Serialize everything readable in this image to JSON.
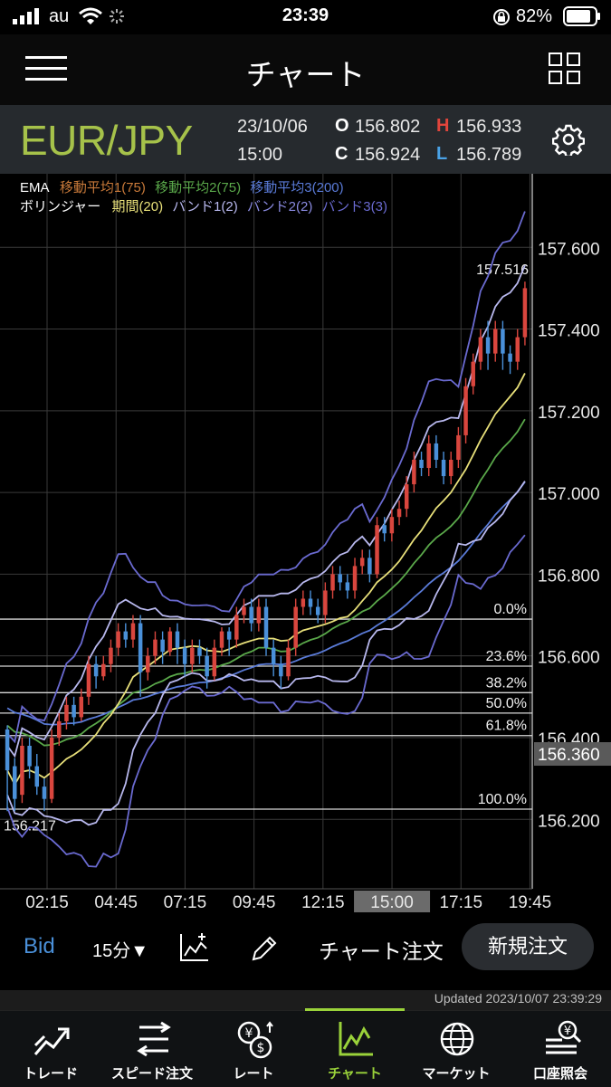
{
  "status_bar": {
    "carrier": "au",
    "time": "23:39",
    "battery": "82%"
  },
  "nav": {
    "title": "チャート",
    "menu_icon": "hamburger-menu-icon",
    "grid_icon": "grid-layout-icon"
  },
  "quote": {
    "pair": "EUR/JPY",
    "date": "23/10/06",
    "time": "15:00",
    "open_label": "O",
    "open": "156.802",
    "high_label": "H",
    "high": "156.933",
    "close_label": "C",
    "close": "156.924",
    "low_label": "L",
    "low": "156.789"
  },
  "legend": {
    "ema_label": "EMA",
    "ma1": "移動平均1(75)",
    "ma2": "移動平均2(75)",
    "ma3": "移動平均3(200)",
    "bb_label": "ボリンジャー",
    "period": "期間(20)",
    "band1": "バンド1(2)",
    "band2": "バンド2(2)",
    "band3": "バンド3(3)"
  },
  "chart_data": {
    "type": "candlestick",
    "y_ticks": [
      "157.600",
      "157.400",
      "157.200",
      "157.000",
      "156.800",
      "156.600",
      "156.400",
      "156.200"
    ],
    "x_ticks": [
      "02:15",
      "04:45",
      "07:15",
      "09:45",
      "12:15",
      "15:00",
      "17:15",
      "19:45"
    ],
    "selected_x": "15:00",
    "current_price": "156.360",
    "high_marker": "157.516",
    "low_marker": "156.217",
    "fib_levels": [
      {
        "label": "0.0%",
        "price": 156.69
      },
      {
        "label": "23.6%",
        "price": 156.575
      },
      {
        "label": "38.2%",
        "price": 156.51
      },
      {
        "label": "50.0%",
        "price": 156.46
      },
      {
        "label": "61.8%",
        "price": 156.405
      },
      {
        "label": "100.0%",
        "price": 156.225
      }
    ],
    "ylim": [
      156.03,
      157.78
    ],
    "candles": [
      [
        156.42,
        156.32,
        156.43,
        156.22
      ],
      [
        156.33,
        156.25,
        156.35,
        156.22
      ],
      [
        156.26,
        156.38,
        156.4,
        156.24
      ],
      [
        156.38,
        156.33,
        156.4,
        156.3
      ],
      [
        156.33,
        156.28,
        156.36,
        156.26
      ],
      [
        156.28,
        156.25,
        156.3,
        156.22
      ],
      [
        156.25,
        156.4,
        156.42,
        156.24
      ],
      [
        156.4,
        156.44,
        156.46,
        156.38
      ],
      [
        156.44,
        156.48,
        156.5,
        156.42
      ],
      [
        156.48,
        156.45,
        156.5,
        156.43
      ],
      [
        156.45,
        156.5,
        156.52,
        156.44
      ],
      [
        156.5,
        156.58,
        156.6,
        156.48
      ],
      [
        156.58,
        156.55,
        156.6,
        156.52
      ],
      [
        156.55,
        156.58,
        156.6,
        156.54
      ],
      [
        156.58,
        156.62,
        156.64,
        156.56
      ],
      [
        156.62,
        156.66,
        156.68,
        156.6
      ],
      [
        156.66,
        156.64,
        156.68,
        156.62
      ],
      [
        156.64,
        156.68,
        156.7,
        156.62
      ],
      [
        156.68,
        156.56,
        156.7,
        156.5
      ],
      [
        156.56,
        156.6,
        156.62,
        156.54
      ],
      [
        156.6,
        156.64,
        156.66,
        156.58
      ],
      [
        156.64,
        156.61,
        156.66,
        156.58
      ],
      [
        156.61,
        156.66,
        156.67,
        156.6
      ],
      [
        156.66,
        156.62,
        156.68,
        156.58
      ],
      [
        156.62,
        156.58,
        156.64,
        156.55
      ],
      [
        156.58,
        156.62,
        156.64,
        156.56
      ],
      [
        156.62,
        156.6,
        156.64,
        156.58
      ],
      [
        156.6,
        156.55,
        156.62,
        156.52
      ],
      [
        156.55,
        156.62,
        156.64,
        156.54
      ],
      [
        156.62,
        156.66,
        156.67,
        156.6
      ],
      [
        156.66,
        156.64,
        156.67,
        156.6
      ],
      [
        156.64,
        156.7,
        156.72,
        156.62
      ],
      [
        156.7,
        156.72,
        156.74,
        156.68
      ],
      [
        156.72,
        156.68,
        156.74,
        156.66
      ],
      [
        156.68,
        156.72,
        156.74,
        156.66
      ],
      [
        156.72,
        156.62,
        156.74,
        156.6
      ],
      [
        156.62,
        156.58,
        156.64,
        156.55
      ],
      [
        156.58,
        156.55,
        156.6,
        156.52
      ],
      [
        156.55,
        156.62,
        156.64,
        156.54
      ],
      [
        156.62,
        156.72,
        156.74,
        156.6
      ],
      [
        156.72,
        156.74,
        156.76,
        156.7
      ],
      [
        156.74,
        156.72,
        156.76,
        156.7
      ],
      [
        156.72,
        156.7,
        156.74,
        156.68
      ],
      [
        156.7,
        156.76,
        156.78,
        156.68
      ],
      [
        156.76,
        156.8,
        156.82,
        156.74
      ],
      [
        156.8,
        156.78,
        156.82,
        156.76
      ],
      [
        156.78,
        156.76,
        156.8,
        156.74
      ],
      [
        156.76,
        156.82,
        156.84,
        156.74
      ],
      [
        156.82,
        156.84,
        156.86,
        156.8
      ],
      [
        156.84,
        156.8,
        156.86,
        156.78
      ],
      [
        156.8,
        156.92,
        156.94,
        156.79
      ],
      [
        156.92,
        156.9,
        156.94,
        156.88
      ],
      [
        156.9,
        156.94,
        156.96,
        156.88
      ],
      [
        156.94,
        156.96,
        156.98,
        156.92
      ],
      [
        156.96,
        157.02,
        157.04,
        156.94
      ],
      [
        157.02,
        157.08,
        157.1,
        157.0
      ],
      [
        157.08,
        157.06,
        157.1,
        157.04
      ],
      [
        157.06,
        157.12,
        157.14,
        157.04
      ],
      [
        157.12,
        157.08,
        157.14,
        157.06
      ],
      [
        157.08,
        157.04,
        157.1,
        157.02
      ],
      [
        157.04,
        157.08,
        157.1,
        157.02
      ],
      [
        157.08,
        157.14,
        157.16,
        157.06
      ],
      [
        157.14,
        157.26,
        157.28,
        157.12
      ],
      [
        157.26,
        157.32,
        157.34,
        157.24
      ],
      [
        157.32,
        157.38,
        157.4,
        157.3
      ],
      [
        157.38,
        157.34,
        157.42,
        157.3
      ],
      [
        157.34,
        157.4,
        157.42,
        157.32
      ],
      [
        157.4,
        157.34,
        157.42,
        157.3
      ],
      [
        157.34,
        157.32,
        157.36,
        157.29
      ],
      [
        157.32,
        157.38,
        157.4,
        157.3
      ],
      [
        157.38,
        157.5,
        157.516,
        157.36
      ]
    ]
  },
  "toolbar": {
    "bid": "Bid",
    "timeframe": "15分▼",
    "chart_order": "チャート注文",
    "new_order": "新規注文"
  },
  "updated": "Updated 2023/10/07 23:39:29",
  "tabs": [
    {
      "label": "トレード",
      "icon": "trade-icon"
    },
    {
      "label": "スピード注文",
      "icon": "speed-order-icon"
    },
    {
      "label": "レート",
      "icon": "rate-icon"
    },
    {
      "label": "チャート",
      "icon": "chart-icon"
    },
    {
      "label": "マーケット",
      "icon": "market-globe-icon"
    },
    {
      "label": "口座照会",
      "icon": "account-icon"
    }
  ],
  "colors": {
    "pair": "#a6c24a",
    "high": "#e2453c",
    "low": "#4aa3e8",
    "up_candle": "#d9463e",
    "down_candle": "#4a90d9",
    "ma1": "#c97a3a",
    "ma2": "#5aa84a",
    "ma3": "#5a7bd8",
    "bb_period": "#e8e07a",
    "bb_band1": "#b8b8ee",
    "bb_band2": "#8a8ae0",
    "bb_band3": "#6a6ad0",
    "active_tab": "#9ad23a"
  }
}
